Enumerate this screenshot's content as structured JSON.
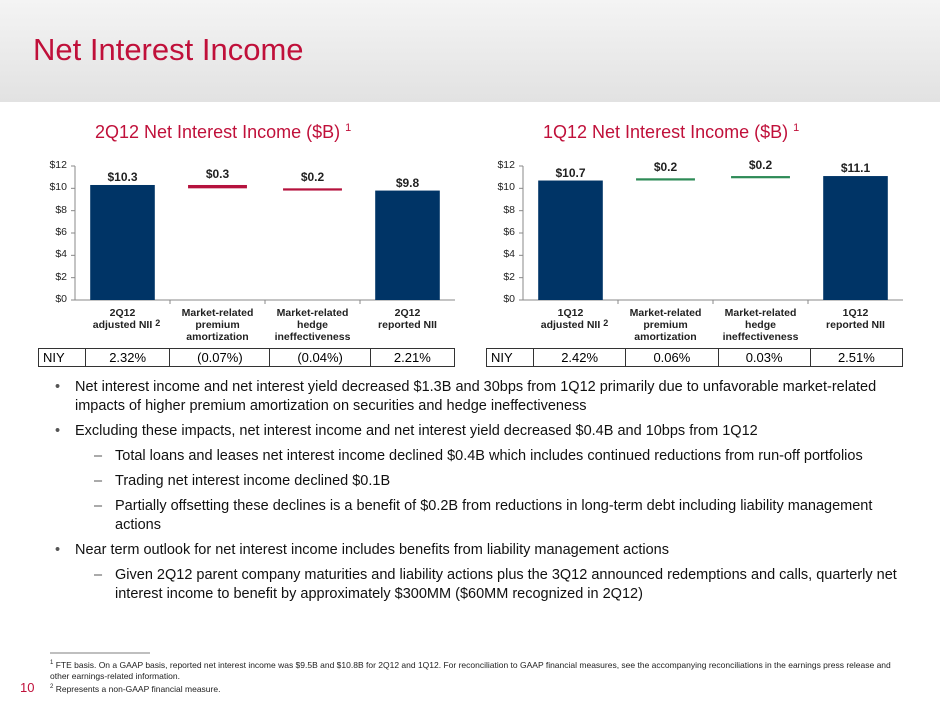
{
  "title": "Net Interest Income",
  "page_number": "10",
  "chart_data": [
    {
      "type": "waterfall",
      "title": "2Q12 Net Interest Income ($B)",
      "title_note": "1",
      "categories": [
        "2Q12\nadjusted NII",
        "Market-related\npremium\namortization",
        "Market-related\nhedge\nineffectiveness",
        "2Q12\nreported NII"
      ],
      "category_notes": [
        "2",
        null,
        null,
        null
      ],
      "values": [
        10.3,
        -0.3,
        -0.2,
        9.8
      ],
      "value_labels": [
        "$10.3",
        "$0.3",
        "$0.2",
        "$9.8"
      ],
      "is_total": [
        true,
        false,
        false,
        true
      ],
      "colors": {
        "total": "#003466",
        "decrease": "#b5123d"
      },
      "ylim": [
        0,
        12
      ],
      "yticks": [
        {
          "value": 0,
          "label": "$0"
        },
        {
          "value": 2,
          "label": "$2"
        },
        {
          "value": 4,
          "label": "$4"
        },
        {
          "value": 6,
          "label": "$6"
        },
        {
          "value": 8,
          "label": "$8"
        },
        {
          "value": 10,
          "label": "$10"
        },
        {
          "value": 12,
          "label": "$12"
        }
      ],
      "table": [
        "NIY",
        "2.32%",
        "(0.07%)",
        "(0.04%)",
        "2.21%"
      ]
    },
    {
      "type": "waterfall",
      "title": "1Q12 Net Interest Income ($B)",
      "title_note": "1",
      "categories": [
        "1Q12\nadjusted NII",
        "Market-related\npremium\namortization",
        "Market-related\nhedge\nineffectiveness",
        "1Q12\nreported NII"
      ],
      "category_notes": [
        "2",
        null,
        null,
        null
      ],
      "values": [
        10.7,
        0.2,
        0.2,
        11.1
      ],
      "value_labels": [
        "$10.7",
        "$0.2",
        "$0.2",
        "$11.1"
      ],
      "is_total": [
        true,
        false,
        false,
        true
      ],
      "colors": {
        "total": "#003466",
        "increase": "#2e8b57"
      },
      "ylim": [
        0,
        12
      ],
      "yticks": [
        {
          "value": 0,
          "label": "$0"
        },
        {
          "value": 2,
          "label": "$2"
        },
        {
          "value": 4,
          "label": "$4"
        },
        {
          "value": 6,
          "label": "$6"
        },
        {
          "value": 8,
          "label": "$8"
        },
        {
          "value": 10,
          "label": "$10"
        },
        {
          "value": 12,
          "label": "$12"
        }
      ],
      "table": [
        "NIY",
        "2.42%",
        "0.06%",
        "0.03%",
        "2.51%"
      ]
    }
  ],
  "bullets": [
    {
      "text": "Net interest income and net interest yield decreased $1.3B and 30bps from 1Q12 primarily due to unfavorable market-related impacts of higher premium amortization on securities and hedge ineffectiveness",
      "sub": []
    },
    {
      "text": "Excluding these impacts, net interest income and net interest yield decreased $0.4B and 10bps from 1Q12",
      "sub": [
        "Total loans and leases net interest income declined $0.4B which includes continued reductions from run-off portfolios",
        "Trading net interest income declined $0.1B",
        "Partially offsetting these declines is a benefit of $0.2B from reductions in long-term debt including liability management actions"
      ]
    },
    {
      "text": "Near term outlook for net interest income includes benefits from liability management actions",
      "sub": [
        "Given 2Q12 parent company maturities and liability actions plus the 3Q12 announced redemptions and calls, quarterly net interest income to benefit by approximately $300MM ($60MM recognized in 2Q12)"
      ]
    }
  ],
  "footnotes": [
    {
      "mark": "1",
      "text": "FTE basis. On a GAAP basis, reported net interest income was $9.5B and $10.8B for 2Q12 and 1Q12. For reconciliation to GAAP financial measures, see the accompanying reconciliations in the earnings press release and other earnings-related information."
    },
    {
      "mark": "2",
      "text": "Represents a non-GAAP financial measure."
    }
  ]
}
